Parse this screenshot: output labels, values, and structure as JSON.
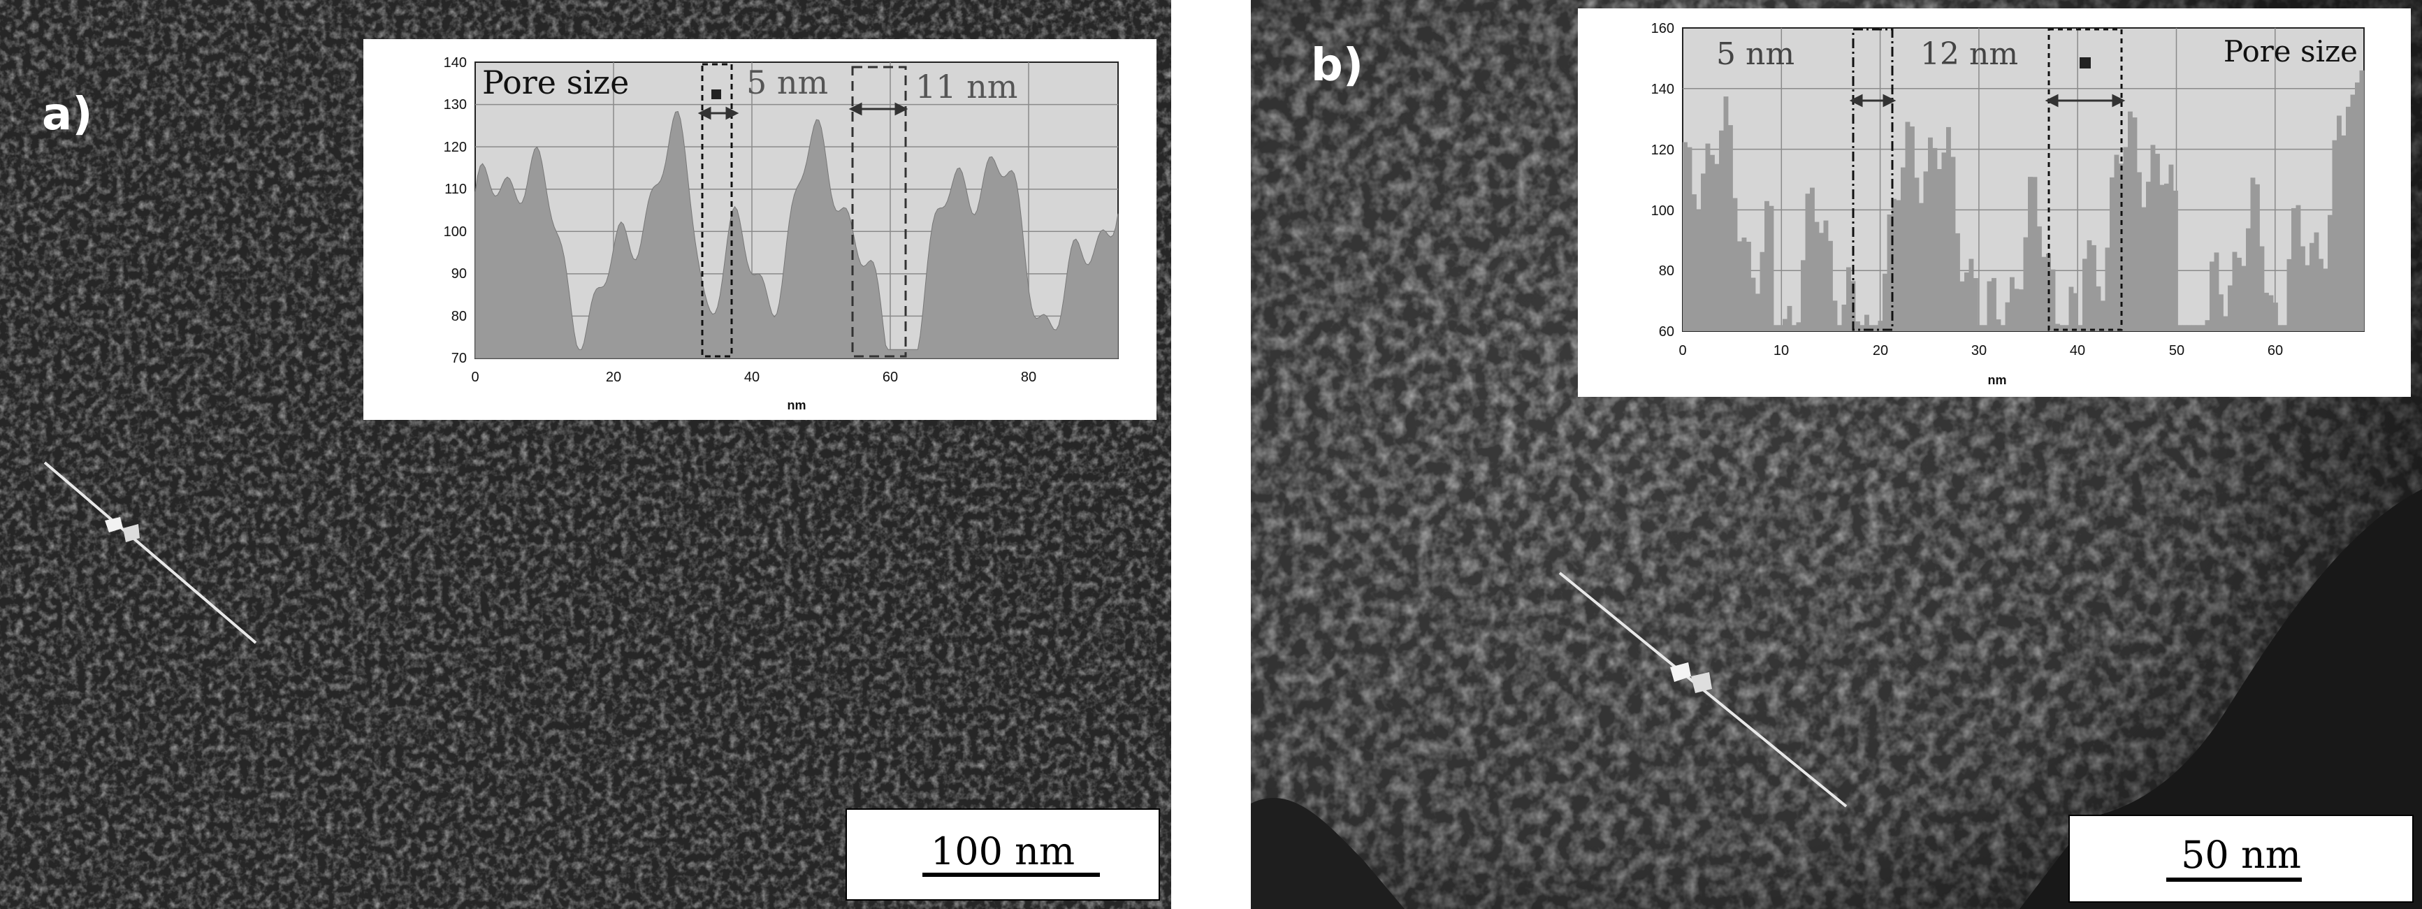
{
  "panel_a": {
    "label": "a)",
    "scale_bar": "100 nm",
    "inset": {
      "title": "Pore size",
      "pore_labels": [
        "5 nm",
        "11 nm"
      ],
      "x_unit": "nm",
      "x_ticks": [
        "0",
        "20",
        "40",
        "60",
        "80"
      ],
      "y_ticks": [
        "70",
        "80",
        "90",
        "100",
        "110",
        "120",
        "130",
        "140"
      ]
    }
  },
  "panel_b": {
    "label": "b)",
    "scale_bar": "50 nm",
    "inset": {
      "title": "Pore size",
      "pore_labels": [
        "5 nm",
        "12 nm"
      ],
      "x_unit": "nm",
      "x_ticks": [
        "0",
        "10",
        "20",
        "30",
        "40",
        "50",
        "60"
      ],
      "y_ticks": [
        "60",
        "80",
        "100",
        "120",
        "140",
        "160"
      ]
    }
  },
  "colors": {
    "plot_background": "#d6d6d6",
    "profile_fill": "#9a9a9a",
    "micrograph_a": "#262626",
    "micrograph_b": "#3a3a3a"
  }
}
